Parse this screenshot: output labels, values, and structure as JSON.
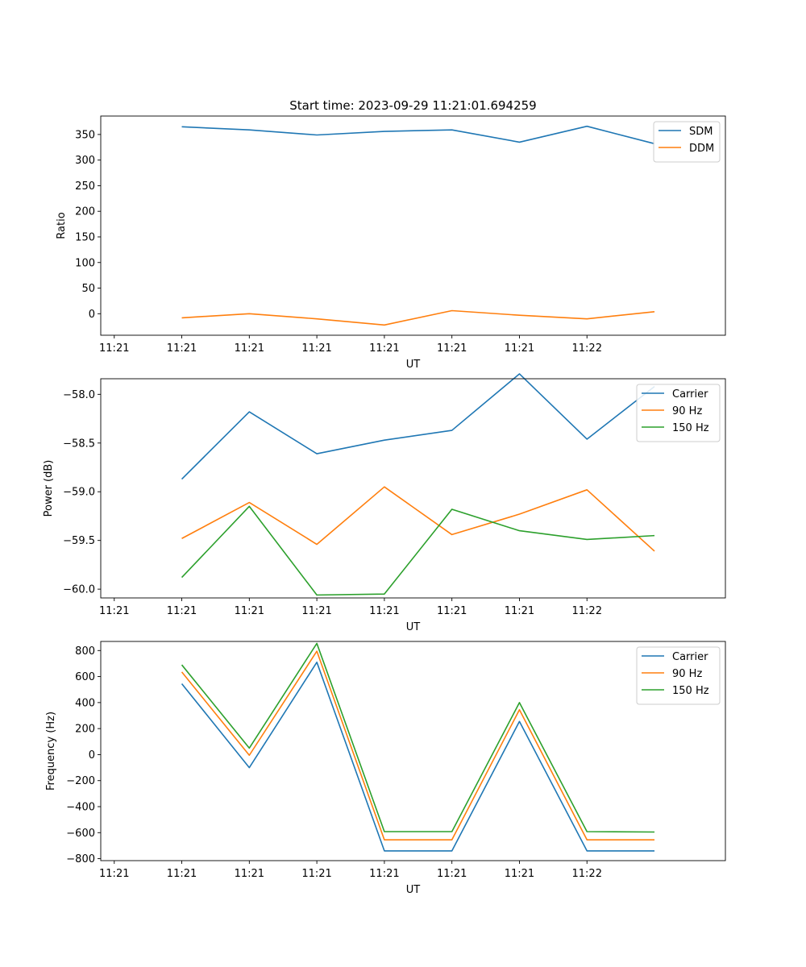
{
  "chart_data": [
    {
      "type": "line",
      "title": "Start time: 2023-09-29 11:21:01.694259",
      "xlabel": "UT",
      "ylabel": "Ratio",
      "x_ticks": [
        "11:21",
        "11:21",
        "11:21",
        "11:21",
        "11:21",
        "11:21",
        "11:21",
        "11:22"
      ],
      "x": [
        1,
        2,
        3,
        4,
        5,
        6,
        7,
        8
      ],
      "xlim": [
        -0.2,
        9.05
      ],
      "ylim": [
        -42,
        386
      ],
      "y_ticks": [
        "0",
        "50",
        "100",
        "150",
        "200",
        "250",
        "300",
        "350"
      ],
      "y_tick_values": [
        0,
        50,
        100,
        150,
        200,
        250,
        300,
        350
      ],
      "grid": false,
      "legend_position": "top-right",
      "series": [
        {
          "name": "SDM",
          "color": "#1f77b4",
          "values": [
            365,
            359,
            349,
            356,
            359,
            335,
            366,
            332
          ]
        },
        {
          "name": "DDM",
          "color": "#ff7f0e",
          "values": [
            -8,
            0,
            -10,
            -22,
            6,
            -3,
            -10,
            4
          ]
        }
      ]
    },
    {
      "type": "line",
      "title": "",
      "xlabel": "UT",
      "ylabel": "Power (dB)",
      "x_ticks": [
        "11:21",
        "11:21",
        "11:21",
        "11:21",
        "11:21",
        "11:21",
        "11:21",
        "11:22"
      ],
      "x": [
        1,
        2,
        3,
        4,
        5,
        6,
        7,
        8
      ],
      "xlim": [
        -0.2,
        9.05
      ],
      "ylim": [
        -60.09,
        -57.84
      ],
      "y_ticks": [
        "−60.0",
        "−59.5",
        "−59.0",
        "−58.5",
        "−58.0"
      ],
      "y_tick_values": [
        -60.0,
        -59.5,
        -59.0,
        -58.5,
        -58.0
      ],
      "grid": false,
      "legend_position": "top-right",
      "series": [
        {
          "name": "Carrier",
          "color": "#1f77b4",
          "values": [
            -58.87,
            -58.18,
            -58.61,
            -58.47,
            -58.37,
            -57.79,
            -58.46,
            -57.92
          ]
        },
        {
          "name": "90 Hz",
          "color": "#ff7f0e",
          "values": [
            -59.48,
            -59.11,
            -59.54,
            -58.95,
            -59.44,
            -59.23,
            -58.98,
            -59.61
          ]
        },
        {
          "name": "150 Hz",
          "color": "#2ca02c",
          "values": [
            -59.88,
            -59.15,
            -60.06,
            -60.05,
            -59.18,
            -59.4,
            -59.49,
            -59.45
          ]
        }
      ]
    },
    {
      "type": "line",
      "title": "",
      "xlabel": "UT",
      "ylabel": "Frequency (Hz)",
      "x_ticks": [
        "11:21",
        "11:21",
        "11:21",
        "11:21",
        "11:21",
        "11:21",
        "11:21",
        "11:22"
      ],
      "x": [
        1,
        2,
        3,
        4,
        5,
        6,
        7,
        8
      ],
      "xlim": [
        -0.2,
        9.05
      ],
      "ylim": [
        -815,
        870
      ],
      "y_ticks": [
        "−800",
        "−600",
        "−400",
        "−200",
        "0",
        "200",
        "400",
        "600",
        "800"
      ],
      "y_tick_values": [
        -800,
        -600,
        -400,
        -200,
        0,
        200,
        400,
        600,
        800
      ],
      "grid": false,
      "legend_position": "top-right",
      "series": [
        {
          "name": "Carrier",
          "color": "#1f77b4",
          "values": [
            545,
            -100,
            710,
            -740,
            -740,
            255,
            -740,
            -740
          ]
        },
        {
          "name": "90 Hz",
          "color": "#ff7f0e",
          "values": [
            635,
            -5,
            795,
            -655,
            -655,
            345,
            -655,
            -655
          ]
        },
        {
          "name": "150 Hz",
          "color": "#2ca02c",
          "values": [
            690,
            50,
            855,
            -592,
            -592,
            400,
            -592,
            -595
          ]
        }
      ]
    }
  ]
}
